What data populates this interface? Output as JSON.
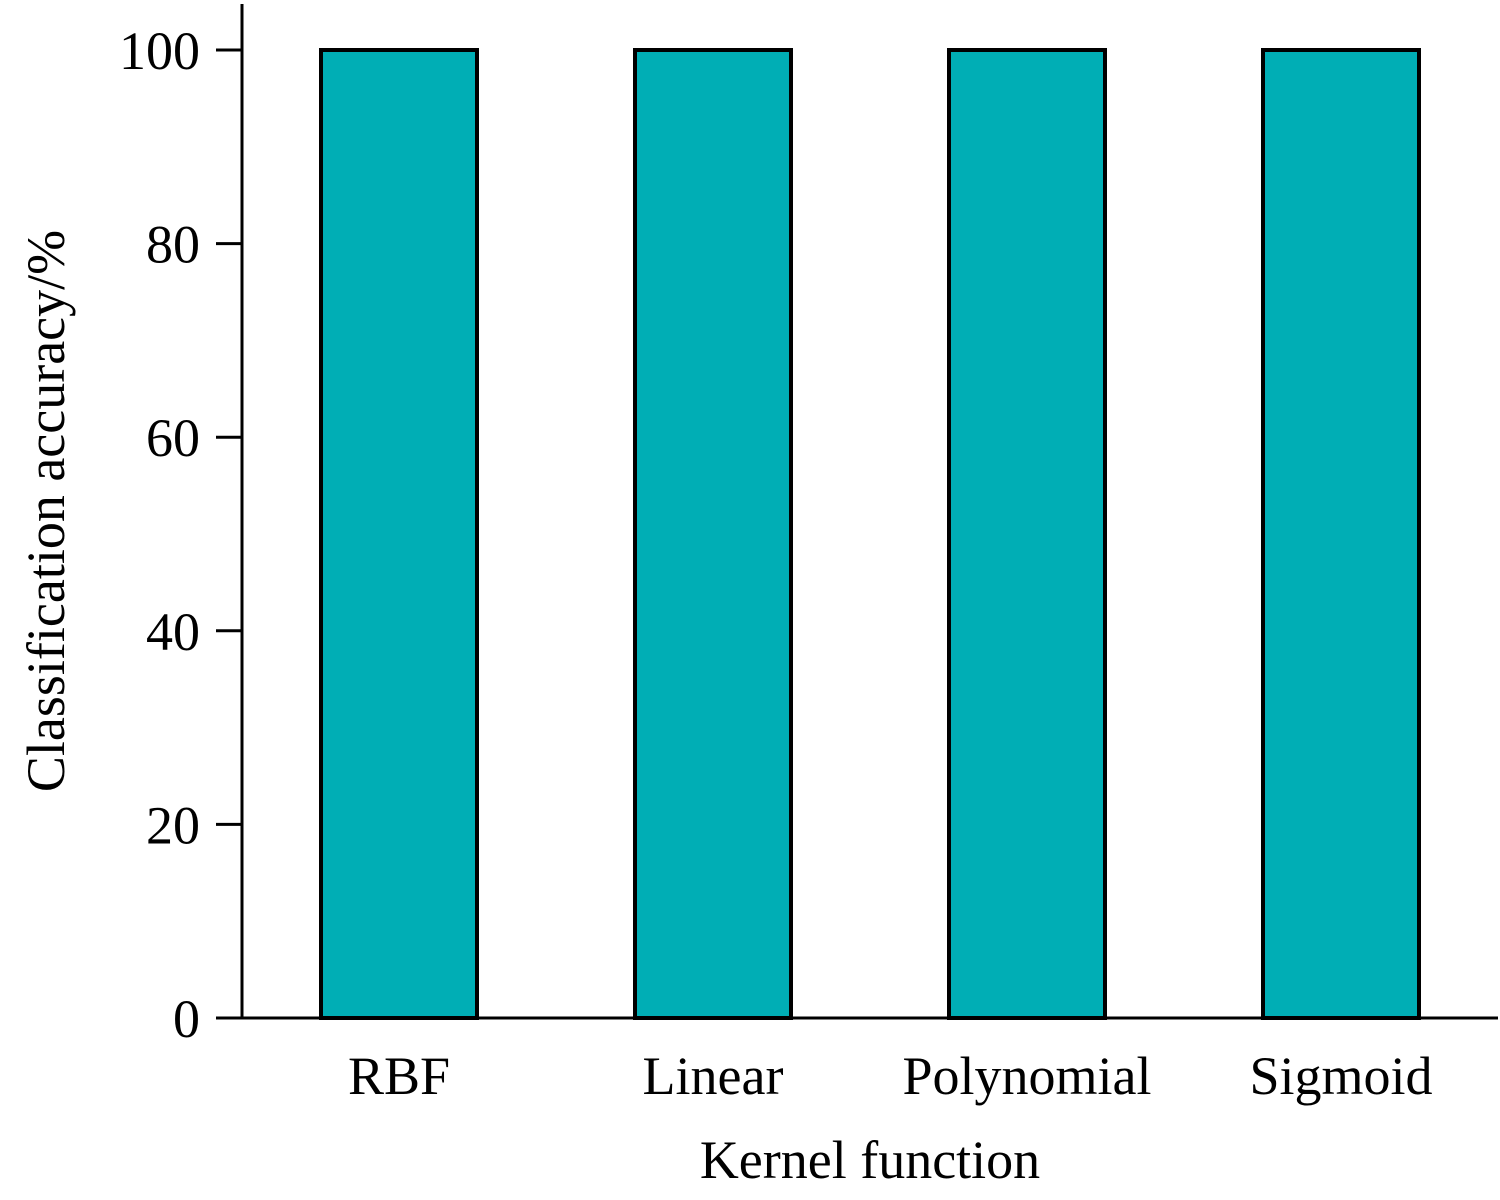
{
  "chart_data": {
    "type": "bar",
    "categories": [
      "RBF",
      "Linear",
      "Polynomial",
      "Sigmoid"
    ],
    "values": [
      100,
      100,
      100,
      100
    ],
    "title": "",
    "xlabel": "Kernel function",
    "ylabel": "Classification accuracy/%",
    "ylim": [
      0,
      100
    ],
    "yticks": [
      0,
      20,
      40,
      60,
      80,
      100
    ],
    "grid": false,
    "legend": "none",
    "bar_color": "#00AEB5",
    "bar_edge_color": "#000000"
  }
}
